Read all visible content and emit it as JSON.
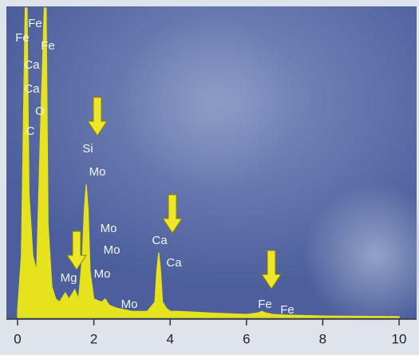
{
  "chart_data": {
    "type": "area",
    "x": [
      0,
      0.1,
      0.2,
      0.25,
      0.3,
      0.4,
      0.5,
      0.6,
      0.7,
      0.75,
      0.8,
      0.9,
      1.0,
      1.1,
      1.25,
      1.35,
      1.5,
      1.6,
      1.7,
      1.75,
      1.8,
      1.85,
      1.9,
      2.0,
      2.2,
      2.3,
      2.4,
      2.6,
      3.0,
      3.4,
      3.6,
      3.65,
      3.7,
      3.75,
      3.8,
      3.9,
      4.0,
      4.2,
      5,
      6,
      6.3,
      6.4,
      6.5,
      6.7,
      7,
      8,
      9,
      10
    ],
    "values": [
      2,
      20,
      100,
      100,
      40,
      20,
      15,
      60,
      100,
      100,
      30,
      10,
      6,
      5,
      8,
      6,
      9,
      6,
      20,
      35,
      43,
      35,
      15,
      6,
      5,
      6,
      4,
      3,
      2,
      2,
      5,
      15,
      21,
      15,
      5,
      3,
      2,
      2,
      1.5,
      1,
      1.5,
      2,
      1.5,
      1,
      0.8,
      0.5,
      0.4,
      0.3
    ],
    "color": "#e6e21e",
    "xlim": [
      0,
      10
    ],
    "ylim": [
      0,
      100
    ],
    "xticks": [
      0,
      2,
      4,
      6,
      8,
      10
    ],
    "annotations": [
      "Fe",
      "Fe",
      "Fe",
      "Ca",
      "Ca",
      "O",
      "C",
      "Si",
      "Mo",
      "Mo",
      "Mo",
      "Mg",
      "Mo",
      "Mo",
      "Ca",
      "Ca",
      "Fe",
      "Fe"
    ]
  }
}
